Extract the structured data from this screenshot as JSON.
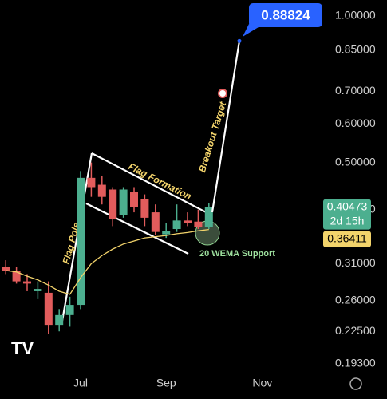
{
  "chart_data": {
    "type": "candlestick",
    "categories": [
      null,
      null,
      null,
      null,
      null,
      null,
      null,
      "Jul",
      null,
      null,
      null,
      null,
      null,
      null,
      null,
      "Sep",
      null,
      null,
      null,
      null,
      null,
      null,
      null,
      null,
      "Nov"
    ],
    "open": [
      0.305,
      0.3,
      0.285,
      0.272,
      0.27,
      0.232,
      0.243,
      0.255,
      0.465,
      0.45,
      0.44,
      0.39,
      0.435,
      0.42,
      0.395,
      0.356,
      0.365,
      0.38,
      0.378,
      0.368,
      null,
      null,
      null,
      null,
      null
    ],
    "high": [
      0.315,
      0.305,
      0.295,
      0.285,
      0.285,
      0.25,
      0.265,
      0.48,
      0.5,
      0.47,
      0.445,
      0.445,
      0.445,
      0.43,
      0.41,
      0.375,
      0.41,
      0.395,
      0.4,
      0.412,
      null,
      null,
      null,
      null,
      null
    ],
    "low": [
      0.295,
      0.282,
      0.272,
      0.262,
      0.222,
      0.225,
      0.23,
      0.25,
      0.425,
      0.41,
      0.37,
      0.385,
      0.395,
      0.37,
      0.355,
      0.35,
      0.36,
      0.37,
      0.365,
      0.365,
      null,
      null,
      null,
      null,
      null
    ],
    "close": [
      0.3,
      0.285,
      0.282,
      0.275,
      0.232,
      0.243,
      0.255,
      0.465,
      0.445,
      0.425,
      0.382,
      0.44,
      0.405,
      0.385,
      0.36,
      0.362,
      0.38,
      0.375,
      0.368,
      0.40473,
      null,
      null,
      null,
      null,
      null
    ],
    "up_color": "#4caf8f",
    "down_color": "#e25c5c",
    "ema": {
      "color": "#f2d36b",
      "values": [
        0.3,
        0.298,
        0.292,
        0.287,
        0.28,
        0.272,
        0.268,
        0.29,
        0.31,
        0.322,
        0.332,
        0.34,
        0.345,
        0.35,
        0.352,
        0.354,
        0.357,
        0.359,
        0.362,
        0.36411,
        null,
        null,
        null,
        null,
        null
      ]
    },
    "ylim": [
      0.183,
      1.078
    ],
    "log_scale": true,
    "yticks": [
      {
        "value": 1.0,
        "label": "1.00000"
      },
      {
        "value": 0.85,
        "label": "0.85000"
      },
      {
        "value": 0.7,
        "label": "0.70000"
      },
      {
        "value": 0.6,
        "label": "0.60000"
      },
      {
        "value": 0.5,
        "label": "0.50000"
      },
      {
        "value": 0.4,
        "label": "0.40000"
      },
      {
        "value": 0.31,
        "label": "0.31000"
      },
      {
        "value": 0.26,
        "label": "0.26000"
      },
      {
        "value": 0.225,
        "label": "0.22500"
      },
      {
        "value": 0.193,
        "label": "0.19300"
      }
    ],
    "last_price": 0.40473,
    "countdown": "2d 15h",
    "ema_price": 0.36411,
    "target": 0.88824,
    "annotations": [
      "Flag Pole",
      "Flag Formation",
      "Breakout Target",
      "20 WEMA Support"
    ]
  }
}
